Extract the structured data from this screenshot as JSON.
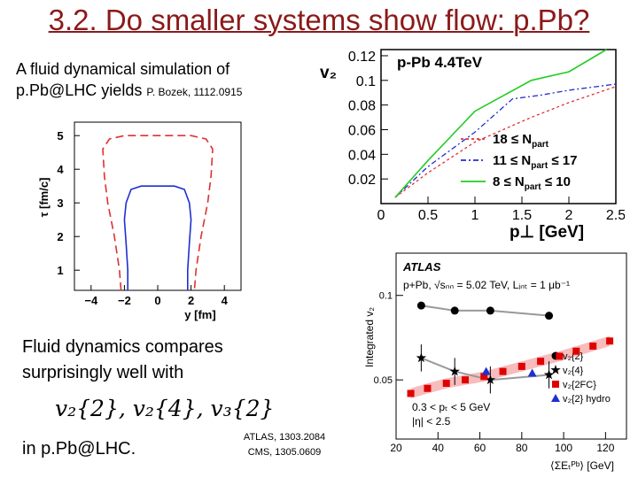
{
  "slide": {
    "title": "3.2. Do smaller systems show flow: p.Pb?",
    "intro_line1": "A fluid dynamical simulation of",
    "intro_line2": "p.Pb@LHC yields",
    "intro_ref": "P. Bozek, 1112.0915",
    "fluid_line1": "Fluid dynamics compares",
    "fluid_line2": "surprisingly well with",
    "formula": "v₂{2}, v₂{4}, v₃{2}",
    "in_ppb": "in p.Pb@LHC.",
    "ref_atlas": "ATLAS, 1303.2084",
    "ref_cms": "CMS, 1305.0609"
  },
  "colors": {
    "title": "#8b1a1a",
    "red": "#e03030",
    "blue": "#1f2fd0",
    "green": "#22cc22"
  },
  "chart_data": [
    {
      "type": "line",
      "xlabel": "y [fm]",
      "ylabel": "τ [fm/c]",
      "xticks": [
        "−4",
        "−2",
        "0",
        "2",
        "4"
      ],
      "yticks": [
        "1",
        "2",
        "3",
        "4",
        "5"
      ],
      "xlim": [
        -5,
        5
      ],
      "ylim": [
        0.4,
        5.4
      ],
      "series": [
        {
          "name": "",
          "color": "#e03030",
          "dashed": true,
          "points": [
            [
              -2.2,
              0.3
            ],
            [
              -2.3,
              1.0
            ],
            [
              -2.6,
              2.0
            ],
            [
              -3.0,
              3.0
            ],
            [
              -3.2,
              3.8
            ],
            [
              -3.3,
              4.6
            ],
            [
              -2.9,
              4.9
            ],
            [
              -2.0,
              5.0
            ],
            [
              0,
              5.0
            ],
            [
              2.0,
              5.0
            ],
            [
              2.9,
              4.9
            ],
            [
              3.3,
              4.6
            ],
            [
              3.2,
              3.8
            ],
            [
              3.0,
              3.0
            ],
            [
              2.6,
              2.0
            ],
            [
              2.3,
              1.0
            ],
            [
              2.2,
              0.3
            ]
          ]
        },
        {
          "name": "",
          "color": "#1f2fd0",
          "dashed": false,
          "points": [
            [
              -1.8,
              0.3
            ],
            [
              -1.8,
              1.0
            ],
            [
              -1.9,
              1.8
            ],
            [
              -2.0,
              2.5
            ],
            [
              -1.9,
              3.0
            ],
            [
              -1.6,
              3.4
            ],
            [
              -1.0,
              3.5
            ],
            [
              0,
              3.5
            ],
            [
              1.0,
              3.5
            ],
            [
              1.6,
              3.4
            ],
            [
              1.9,
              3.0
            ],
            [
              2.0,
              2.5
            ],
            [
              1.9,
              1.8
            ],
            [
              1.8,
              1.0
            ],
            [
              1.8,
              0.3
            ]
          ]
        }
      ]
    },
    {
      "type": "line",
      "title": "p-Pb 4.4TeV",
      "xlabel": "p⊥ [GeV]",
      "ylabel": "v₂",
      "xticks": [
        "0",
        "0.5",
        "1",
        "1.5",
        "2",
        "2.5"
      ],
      "yticks": [
        "0.02",
        "0.04",
        "0.06",
        "0.08",
        "0.1",
        "0.12"
      ],
      "xlim": [
        0,
        2.5
      ],
      "ylim": [
        0,
        0.125
      ],
      "legend_position": "bottom-right",
      "series": [
        {
          "name": "18 ≤ Nₚₐᵣₜ",
          "legend_label": "18 ≤ N",
          "color": "#e03030",
          "style": "dotted",
          "x": [
            0.15,
            0.5,
            1.0,
            1.3,
            1.6,
            2.0,
            2.5
          ],
          "y": [
            0.005,
            0.025,
            0.05,
            0.06,
            0.07,
            0.082,
            0.095
          ]
        },
        {
          "name": "11 ≤ Nₚₐᵣₜ ≤ 17",
          "legend_label": "11 ≤ N",
          "legend_suffix": " ≤ 17",
          "color": "#1f2fd0",
          "style": "dashdot",
          "x": [
            0.15,
            0.5,
            1.0,
            1.4,
            1.7,
            2.0,
            2.5
          ],
          "y": [
            0.005,
            0.03,
            0.058,
            0.085,
            0.088,
            0.092,
            0.097
          ]
        },
        {
          "name": "8 ≤ Nₚₐᵣₜ ≤ 10",
          "legend_label": "8 ≤ N",
          "legend_suffix": " ≤ 10",
          "color": "#22cc22",
          "style": "solid",
          "x": [
            0.15,
            0.5,
            1.0,
            1.6,
            2.0,
            2.4
          ],
          "y": [
            0.005,
            0.035,
            0.075,
            0.1,
            0.107,
            0.125
          ]
        }
      ]
    },
    {
      "type": "scatter",
      "title": "ATLAS",
      "subtitle": "p+Pb, √sₙₙ = 5.02 TeV,  Lᵢₙₜ = 1 μb⁻¹",
      "cut_text_1": "0.3 < pₜ < 5 GeV",
      "cut_text_2": "|η| < 2.5",
      "xlabel": "⟨ΣEₜᴾᵇ⟩ [GeV]",
      "ylabel": "Integrated v₂",
      "xticks": [
        "20",
        "40",
        "60",
        "80",
        "100",
        "120"
      ],
      "yticks": [
        "0.1",
        "0.05"
      ],
      "xlim": [
        20,
        130
      ],
      "ylim": [
        0.015,
        0.125
      ],
      "legend_position": "right",
      "series": [
        {
          "name": "v₂{2}",
          "marker": "circle",
          "color": "#000000",
          "x": [
            32,
            48,
            65,
            93
          ],
          "y": [
            0.094,
            0.091,
            0.091,
            0.088
          ]
        },
        {
          "name": "v₂{4}",
          "marker": "star",
          "color": "#000000",
          "x": [
            32,
            48,
            65,
            93
          ],
          "y": [
            0.063,
            0.055,
            0.05,
            0.053
          ]
        },
        {
          "name": "v₂{2FC}",
          "marker": "square",
          "color": "#e00000",
          "x": [
            27,
            35,
            44,
            53,
            62,
            71,
            80,
            89,
            98,
            106,
            114,
            122
          ],
          "y": [
            0.042,
            0.045,
            0.048,
            0.05,
            0.052,
            0.055,
            0.058,
            0.061,
            0.064,
            0.067,
            0.07,
            0.073
          ]
        },
        {
          "name": "v₂{2} hydro",
          "marker": "triangle",
          "color": "#1f2fd0",
          "x": [
            63,
            85
          ],
          "y": [
            0.055,
            0.054
          ]
        }
      ]
    }
  ]
}
